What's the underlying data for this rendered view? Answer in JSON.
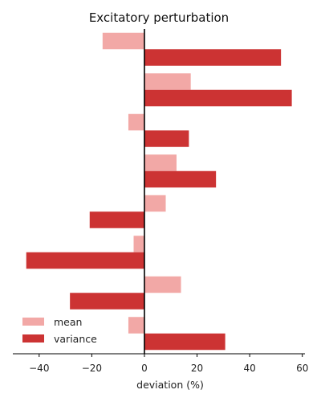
{
  "chart_data": {
    "type": "bar",
    "orientation": "horizontal",
    "title": "Excitatory perturbation",
    "xlabel": "deviation (%)",
    "ylabel": "",
    "xlim": [
      -50,
      61
    ],
    "xticks": [
      -40,
      -20,
      0,
      20,
      40,
      60
    ],
    "xtick_labels": [
      "−40",
      "−20",
      "0",
      "20",
      "40",
      "60"
    ],
    "grid": false,
    "legend_position": "lower-left",
    "categories": [
      "",
      "",
      "",
      "",
      "",
      "",
      "",
      ""
    ],
    "series": [
      {
        "name": "mean",
        "color": "#f2a8a6",
        "values": [
          -15.9,
          17.6,
          -6.1,
          12.2,
          8.1,
          -4.1,
          13.9,
          -6.1
        ]
      },
      {
        "name": "variance",
        "color": "#cc3333",
        "values": [
          51.9,
          56.0,
          16.9,
          27.2,
          -20.8,
          -44.9,
          -28.3,
          30.7
        ]
      }
    ]
  }
}
